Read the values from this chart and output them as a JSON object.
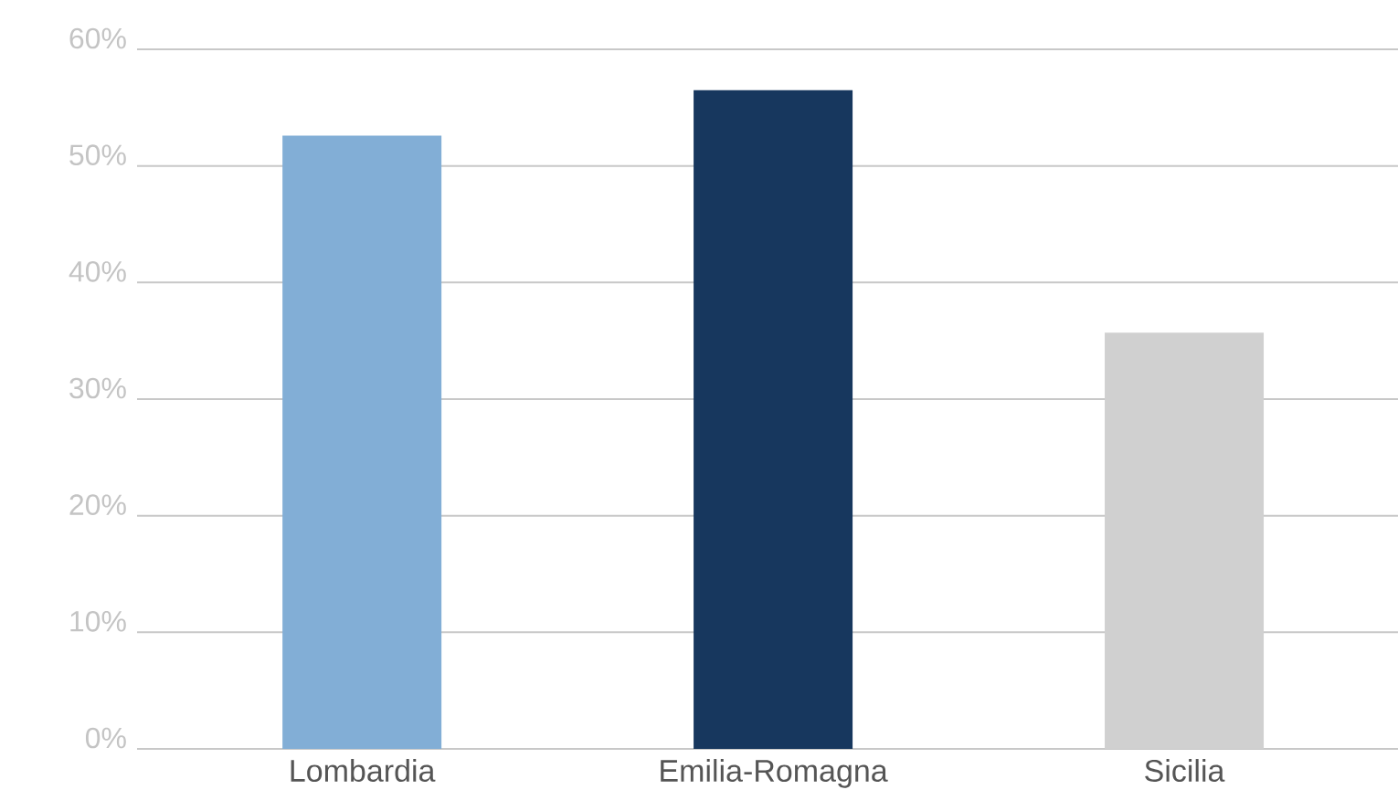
{
  "chart_data": {
    "type": "bar",
    "categories": [
      "Lombardia",
      "Emilia-Romagna",
      "Sicilia"
    ],
    "values": [
      52.6,
      56.5,
      35.7
    ],
    "colors": [
      "#82aed6",
      "#17375e",
      "#d0d0d0"
    ],
    "ylim": [
      0,
      60
    ],
    "yticks": [
      {
        "value": 0,
        "label": "0%"
      },
      {
        "value": 10,
        "label": "10%"
      },
      {
        "value": 20,
        "label": "20%"
      },
      {
        "value": 30,
        "label": "30%"
      },
      {
        "value": 40,
        "label": "40%"
      },
      {
        "value": 50,
        "label": "50%"
      },
      {
        "value": 60,
        "label": "60%"
      }
    ],
    "grid": "y"
  }
}
